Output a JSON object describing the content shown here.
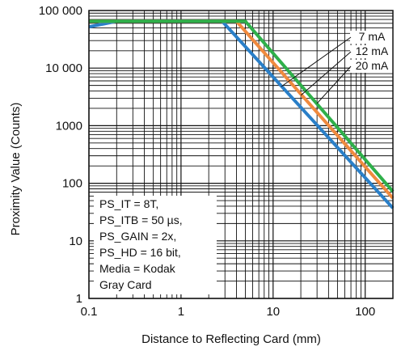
{
  "chart_data": {
    "type": "line",
    "xscale": "log",
    "yscale": "log",
    "xlim": [
      0.1,
      200
    ],
    "ylim": [
      1,
      100000
    ],
    "xlabel": "Distance to Reflecting Card (mm)",
    "ylabel": "Proximity Value (Counts)",
    "x_ticks": [
      {
        "value": 0.1,
        "label": "0.1"
      },
      {
        "value": 1,
        "label": "1"
      },
      {
        "value": 10,
        "label": "10"
      },
      {
        "value": 100,
        "label": "100"
      }
    ],
    "y_ticks": [
      {
        "value": 1,
        "label": "1"
      },
      {
        "value": 10,
        "label": "10"
      },
      {
        "value": 100,
        "label": "100"
      },
      {
        "value": 1000,
        "label": "1000"
      },
      {
        "value": 10000,
        "label": "10 000"
      },
      {
        "value": 100000,
        "label": "100 000"
      }
    ],
    "grid": true,
    "legend_position": "top-right",
    "series": [
      {
        "name": "7 mA",
        "color": "#2a7fc8",
        "points": [
          [
            0.1,
            52000
          ],
          [
            0.2,
            65000
          ],
          [
            2.8,
            65000
          ],
          [
            200,
            37
          ]
        ]
      },
      {
        "name": "12 mA",
        "color": "#f08a3e",
        "points": [
          [
            0.1,
            65000
          ],
          [
            4.0,
            65000
          ],
          [
            200,
            55
          ]
        ]
      },
      {
        "name": "20 mA",
        "color": "#2fb04a",
        "points": [
          [
            0.1,
            65000
          ],
          [
            5.0,
            65000
          ],
          [
            200,
            72
          ]
        ]
      }
    ],
    "annotation_lines": [
      "PS_IT = 8T,",
      "PS_ITB = 50 µs,",
      "PS_GAIN = 2x,",
      "PS_HD = 16 bit,",
      "Media = Kodak",
      "Gray Card"
    ]
  }
}
